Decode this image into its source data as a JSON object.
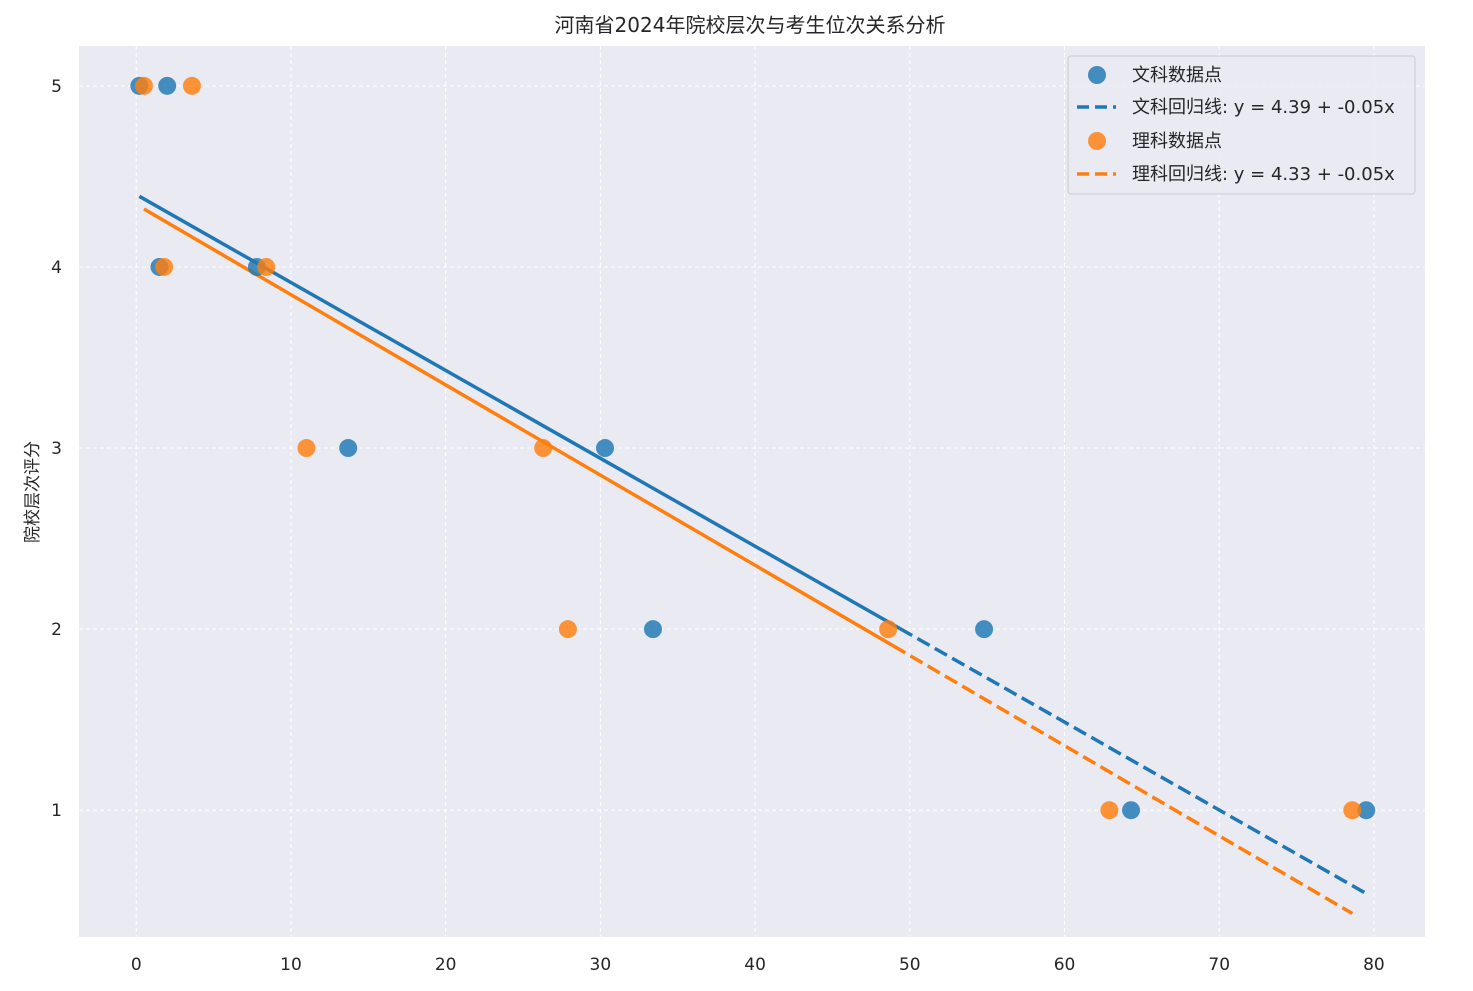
{
  "chart_data": {
    "type": "scatter",
    "title": "河南省2024年院校层次与考生位次关系分析",
    "xlabel": "",
    "ylabel": "院校层次评分",
    "xlim": [
      -3.7,
      83.3
    ],
    "ylim": [
      0.3,
      5.22
    ],
    "xticks": [
      0,
      10,
      20,
      30,
      40,
      50,
      60,
      70,
      80
    ],
    "yticks": [
      1,
      2,
      3,
      4,
      5
    ],
    "grid": true,
    "legend_position": "top-right",
    "series": [
      {
        "name": "文科数据点",
        "kind": "scatter",
        "color": "#1f77b4",
        "points": [
          [
            0.2,
            5
          ],
          [
            2.0,
            5
          ],
          [
            1.5,
            4
          ],
          [
            7.8,
            4
          ],
          [
            13.7,
            3
          ],
          [
            30.3,
            3
          ],
          [
            33.4,
            2
          ],
          [
            54.8,
            2
          ],
          [
            64.3,
            1
          ],
          [
            79.5,
            1
          ]
        ]
      },
      {
        "name": "文科回归线: y = 4.39 + -0.05x",
        "kind": "line",
        "color": "#1f77b4",
        "intercept": 4.39,
        "slope": -0.05,
        "x_range": [
          0.2,
          79.5
        ],
        "y_range": [
          4.39,
          0.54
        ]
      },
      {
        "name": "理科数据点",
        "kind": "scatter",
        "color": "#ff7f0e",
        "points": [
          [
            0.5,
            5
          ],
          [
            3.6,
            5
          ],
          [
            1.8,
            4
          ],
          [
            8.4,
            4
          ],
          [
            11.0,
            3
          ],
          [
            26.3,
            3
          ],
          [
            27.9,
            2
          ],
          [
            48.6,
            2
          ],
          [
            62.9,
            1
          ],
          [
            78.6,
            1
          ]
        ]
      },
      {
        "name": "理科回归线: y = 4.33 + -0.05x",
        "kind": "line",
        "color": "#ff7f0e",
        "intercept": 4.33,
        "slope": -0.05,
        "x_range": [
          0.5,
          78.6
        ],
        "y_range": [
          4.32,
          0.43
        ]
      }
    ]
  }
}
